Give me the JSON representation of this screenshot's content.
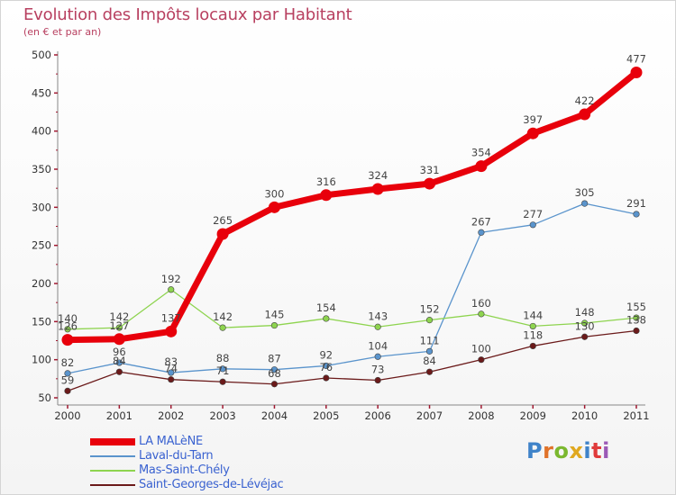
{
  "header": {
    "title": "Evolution des Impôts locaux par Habitant",
    "subtitle": "(en € et par an)"
  },
  "brand": {
    "letters": [
      "P",
      "r",
      "o",
      "x",
      "i",
      "t",
      "i"
    ]
  },
  "chart_data": {
    "type": "line",
    "title": "Evolution des Impôts locaux par Habitant",
    "subtitle": "(en € et par an)",
    "x": [
      "2000",
      "2001",
      "2002",
      "2003",
      "2004",
      "2005",
      "2006",
      "2007",
      "2008",
      "2009",
      "2010",
      "2011"
    ],
    "ylim": [
      50,
      500
    ],
    "yticks": [
      50,
      100,
      150,
      200,
      250,
      300,
      350,
      400,
      450,
      500
    ],
    "grid": false,
    "legend_position": "bottom-left",
    "series": [
      {
        "name": "LA MALèNE",
        "color": "#e8000b",
        "values": [
          126,
          127,
          137,
          265,
          300,
          316,
          324,
          331,
          354,
          397,
          422,
          477
        ]
      },
      {
        "name": "Laval-du-Tarn",
        "color": "#5a94cc",
        "values": [
          82,
          96,
          83,
          88,
          87,
          92,
          104,
          111,
          267,
          277,
          305,
          291
        ]
      },
      {
        "name": "Mas-Saint-Chély",
        "color": "#8ed44f",
        "values": [
          140,
          142,
          192,
          142,
          145,
          154,
          143,
          152,
          160,
          144,
          148,
          155
        ]
      },
      {
        "name": "Saint-Georges-de-Lévéjac",
        "color": "#6b1a1a",
        "values": [
          59,
          84,
          74,
          71,
          68,
          76,
          73,
          84,
          100,
          118,
          130,
          138
        ]
      }
    ]
  }
}
